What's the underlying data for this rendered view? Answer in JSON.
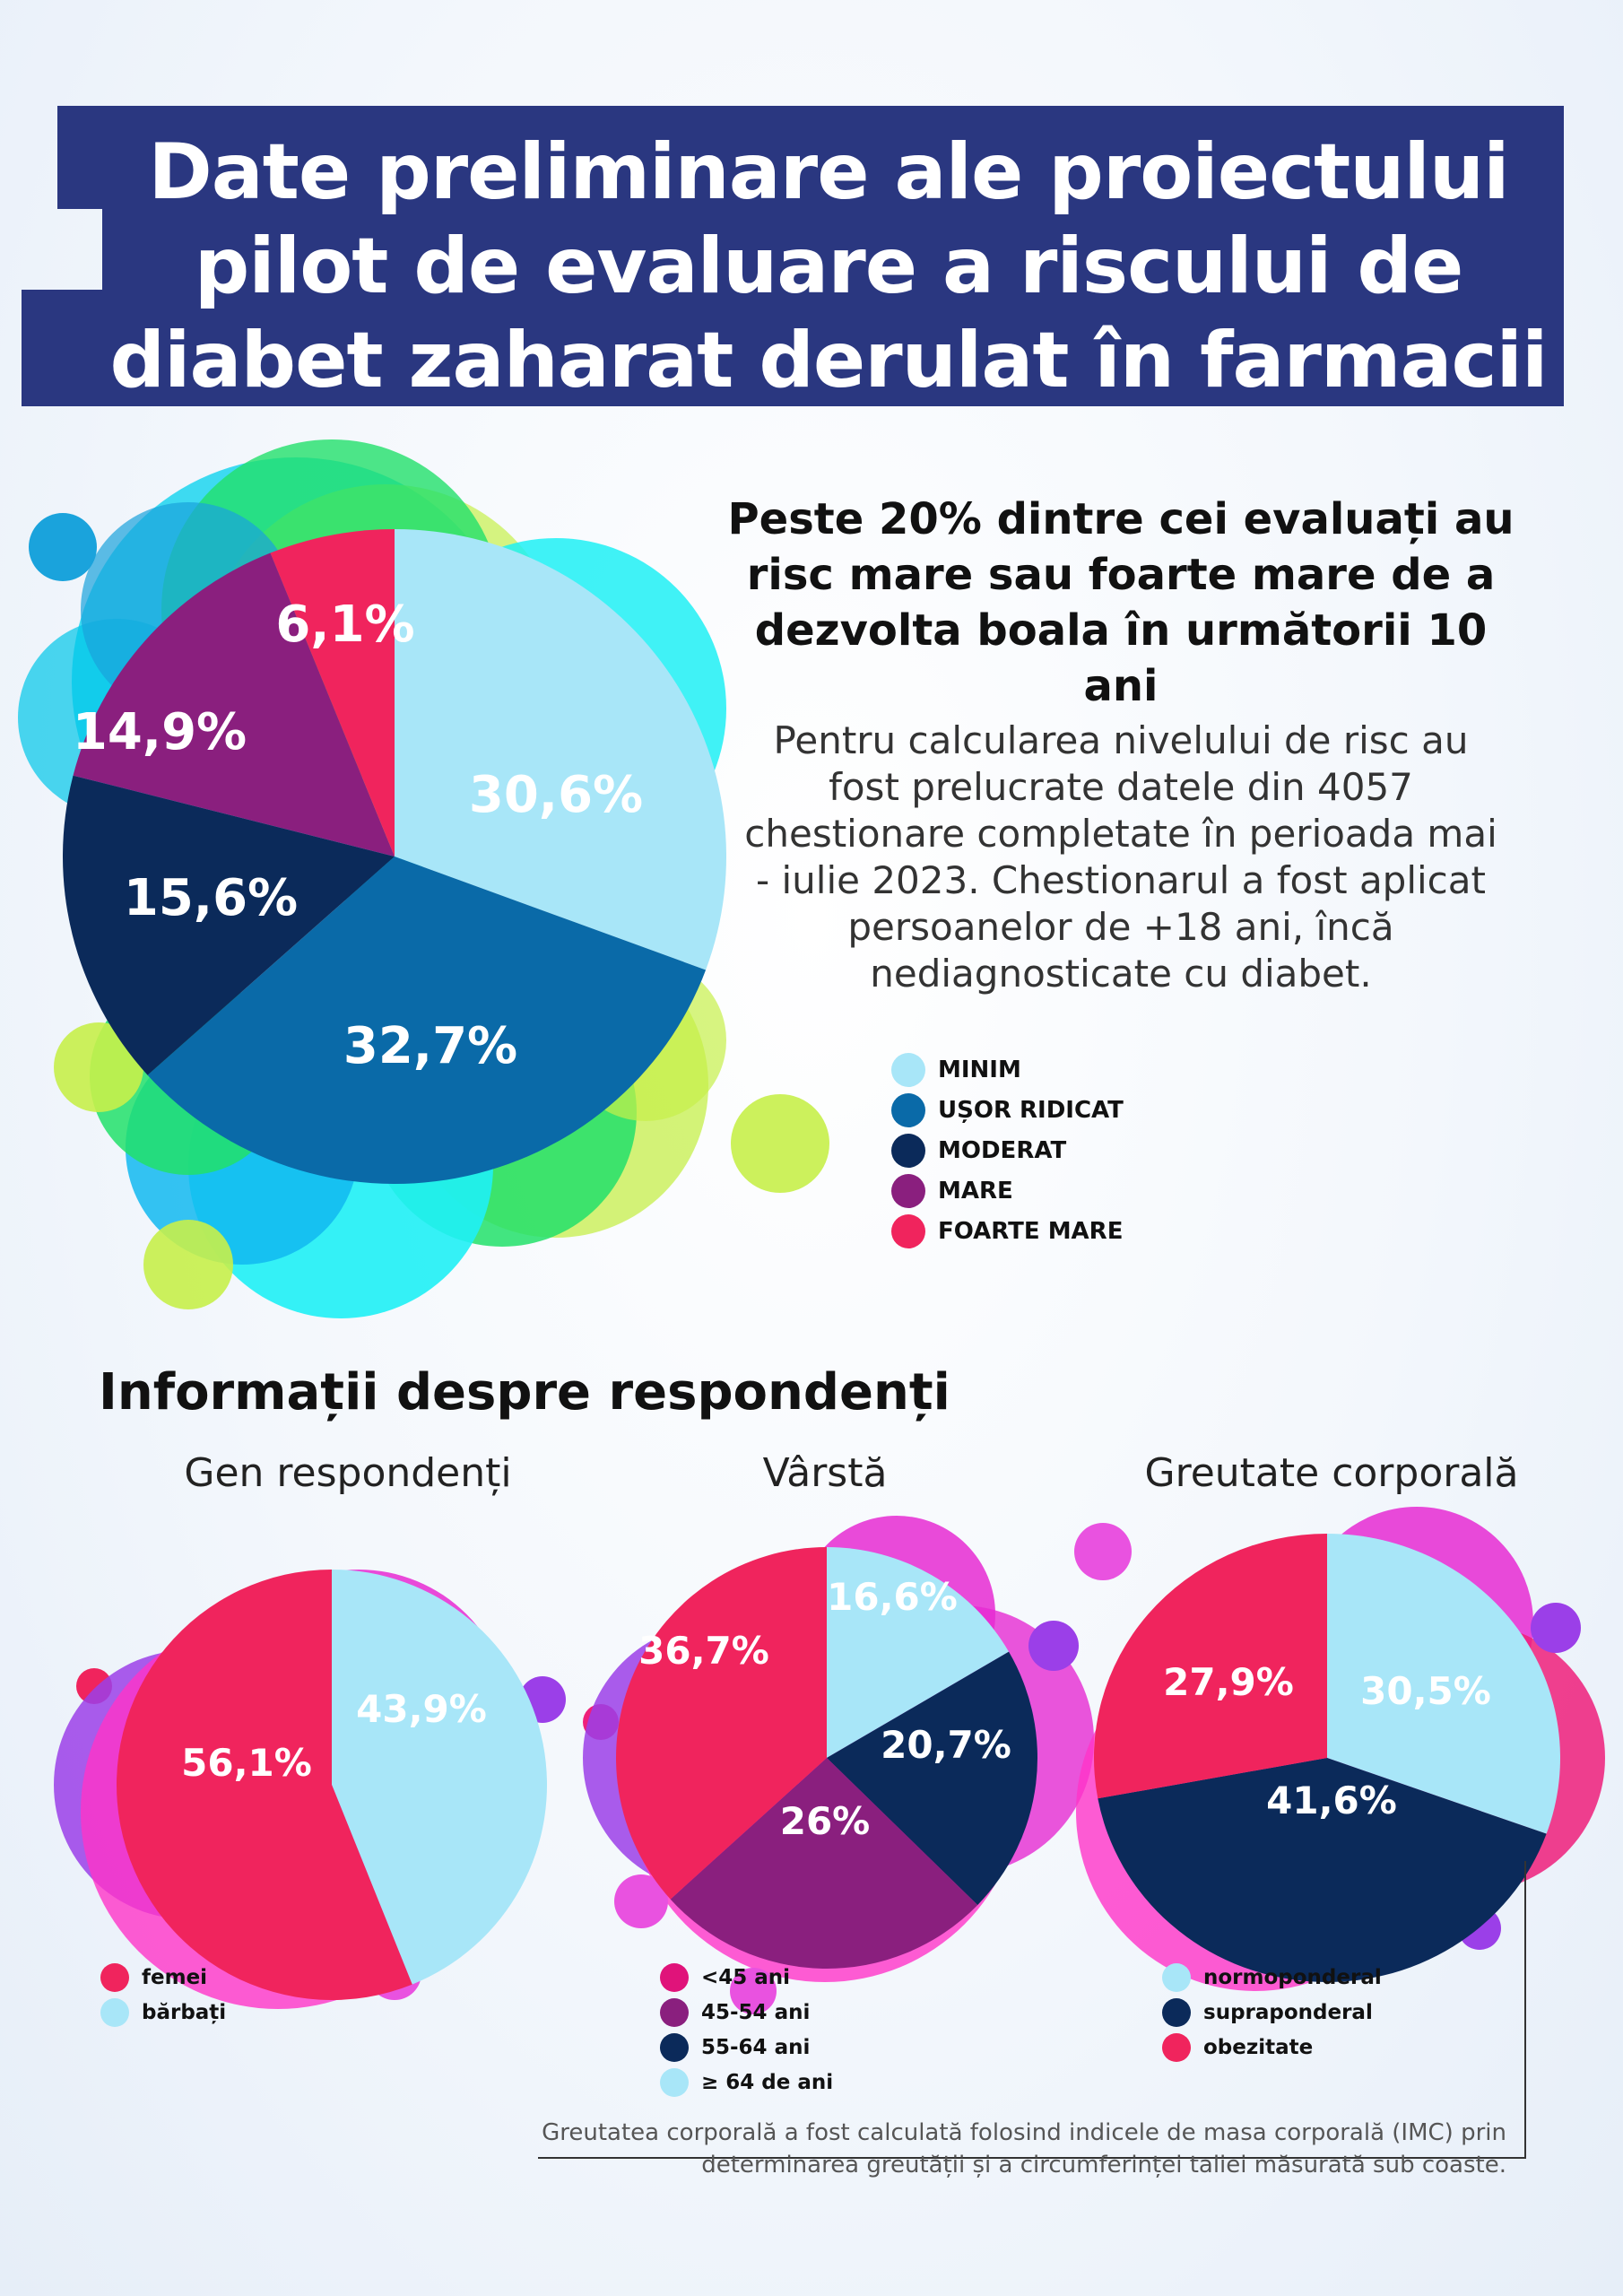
{
  "title": "Date preliminare ale proiectului pilot de evaluare a riscului de diabet zaharat derulat în farmacii",
  "headline": "Peste 20% dintre cei evaluați au risc mare sau foarte mare de a dezvolta boala în următorii 10 ani",
  "description": "Pentru calcularea nivelului de risc au fost prelucrate datele din 4057 chestionare completate în perioada mai - iulie 2023. Chestionarul a fost aplicat persoanelor de +18 ani, încă nediagnosticate cu diabet.",
  "section_title": "Informații despre respondenți",
  "footnote": "Greutatea corporală a fost calculată folosind indicele de masa corporală (IMC) prin determinarea greutății și a circumferinței taliei măsurată sub coaste.",
  "colors": {
    "title_bg": "#2a3780",
    "light_blue": "#a8e6f8",
    "mid_blue": "#0a6aa8",
    "navy": "#0b2a5a",
    "purple": "#8a1f7e",
    "red": "#f0245d",
    "pink": "#ef1f7a"
  },
  "chart_data": [
    {
      "type": "pie",
      "title": "",
      "categories": [
        "MINIM",
        "UȘOR RIDICAT",
        "MODERAT",
        "MARE",
        "FOARTE MARE"
      ],
      "values": [
        30.6,
        32.7,
        15.6,
        14.9,
        6.1
      ],
      "labels": [
        "30,6%",
        "32,7%",
        "15,6%",
        "14,9%",
        "6,1%"
      ],
      "colors": [
        "#a8e6f8",
        "#0a6aa8",
        "#0b2a5a",
        "#8a1f7e",
        "#f0245d"
      ]
    },
    {
      "type": "pie",
      "title": "Gen respondenți",
      "categories": [
        "femei",
        "bărbați"
      ],
      "values": [
        56.1,
        43.9
      ],
      "labels": [
        "56,1%",
        "43,9%"
      ],
      "colors": [
        "#f0245d",
        "#a8e6f8"
      ]
    },
    {
      "type": "pie",
      "title": "Vârstă",
      "categories": [
        "<45 ani",
        "45-54 ani",
        "55-64 ani",
        "≥ 64 de ani"
      ],
      "values": [
        36.7,
        26,
        20.7,
        16.6
      ],
      "labels": [
        "36,7%",
        "26%",
        "20,7%",
        "16,6%"
      ],
      "colors": [
        "#f0245d",
        "#8a1f7e",
        "#0b2a5a",
        "#a8e6f8"
      ],
      "legend_colors": [
        "#e0137a",
        "#8a1f7e",
        "#0b2a5a",
        "#a8e6f8"
      ]
    },
    {
      "type": "pie",
      "title": "Greutate corporală",
      "categories": [
        "normoponderal",
        "supraponderal",
        "obezitate"
      ],
      "values": [
        30.5,
        41.6,
        27.9
      ],
      "labels": [
        "30,5%",
        "41,6%",
        "27,9%"
      ],
      "colors": [
        "#a8e6f8",
        "#0b2a5a",
        "#f0245d"
      ]
    }
  ]
}
